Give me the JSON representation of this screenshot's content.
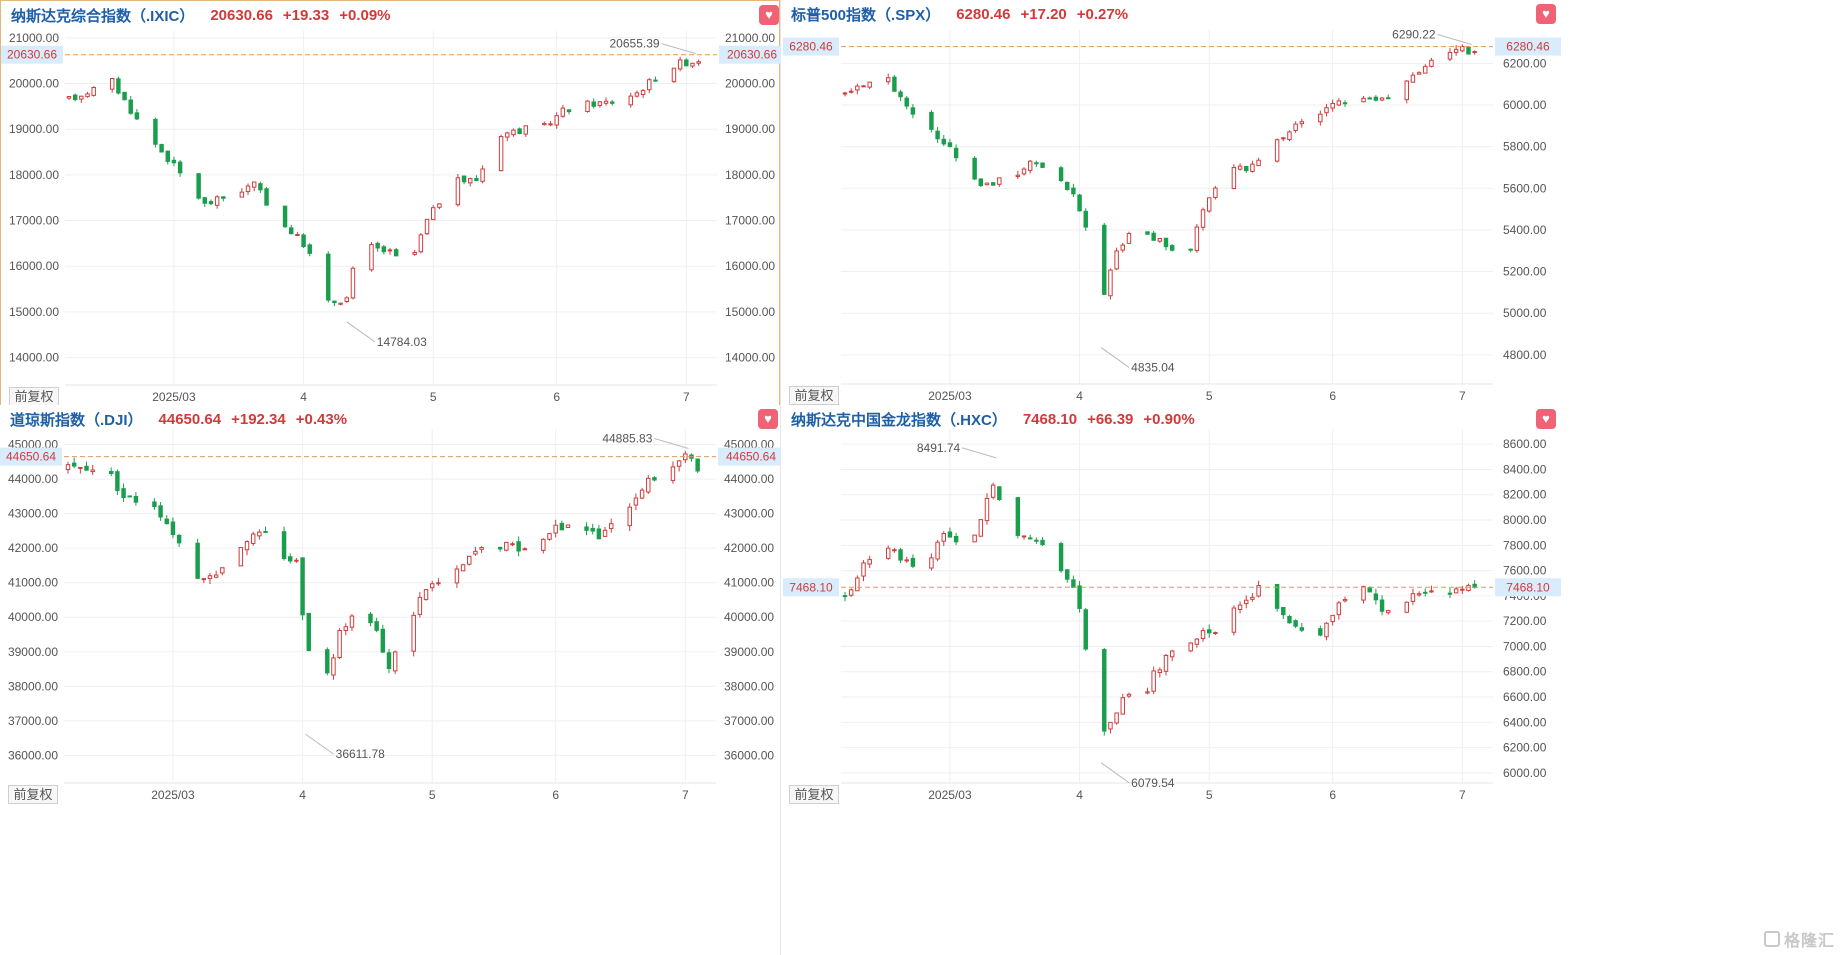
{
  "colors": {
    "up": "#cf3d3d",
    "down": "#1a9e4e",
    "reference_line": "#e09a55",
    "grid": "#efefef",
    "index_name": "#1f5fa8",
    "quote": "#d23a3a",
    "price_tag_bg": "#d9ecfb",
    "price_tag_text": "#d23a3a",
    "favorite": "#f06276"
  },
  "icons": {
    "favorite": "heart-icon",
    "watermark": "gelonghui-logo"
  },
  "adjust_label": "前复权",
  "watermark_text": "格隆汇",
  "panels": [
    {
      "id": "ixic",
      "active": true,
      "name": "纳斯达克综合指数（.IXIC）",
      "price": "20630.66",
      "change": "+19.33",
      "change_pct": "+0.09%",
      "chart_data": {
        "type": "candlestick",
        "title": "纳斯达克综合指数（.IXIC）",
        "x_labels": [
          {
            "label": "2025/03",
            "day": 17
          },
          {
            "label": "4",
            "day": 38
          },
          {
            "label": "5",
            "day": 59
          },
          {
            "label": "6",
            "day": 79
          },
          {
            "label": "7",
            "day": 100
          }
        ],
        "y_ticks": [
          "21000.00",
          "20000.00",
          "19000.00",
          "18000.00",
          "17000.00",
          "16000.00",
          "15000.00",
          "14000.00"
        ],
        "ylim": [
          13400,
          21150
        ],
        "current_price": 20630.66,
        "current_price_label": "20630.66",
        "max_point": {
          "day": 101.5,
          "value": 20655.39,
          "label": "20655.39"
        },
        "min_point": {
          "day": 45,
          "value": 14784.03,
          "label": "14784.03"
        },
        "trend": [
          [
            0,
            19650
          ],
          [
            7,
            20050
          ],
          [
            12,
            19000
          ],
          [
            17,
            18200
          ],
          [
            22,
            17350
          ],
          [
            27,
            17600
          ],
          [
            30,
            17800
          ],
          [
            34,
            17000
          ],
          [
            38,
            16500
          ],
          [
            40,
            16000
          ],
          [
            42,
            15200
          ],
          [
            45,
            15300
          ],
          [
            47,
            16500
          ],
          [
            52,
            16300
          ],
          [
            55,
            15950
          ],
          [
            58,
            17000
          ],
          [
            62,
            17850
          ],
          [
            66,
            17900
          ],
          [
            70,
            18900
          ],
          [
            74,
            19000
          ],
          [
            77,
            19050
          ],
          [
            80,
            19400
          ],
          [
            84,
            19550
          ],
          [
            88,
            19600
          ],
          [
            92,
            19800
          ],
          [
            96,
            20250
          ],
          [
            99,
            20450
          ],
          [
            101,
            20480
          ],
          [
            104,
            20630
          ]
        ],
        "volatility": 130,
        "days": 104
      }
    },
    {
      "id": "spx",
      "active": false,
      "name": "标普500指数（.SPX）",
      "price": "6280.46",
      "change": "+17.20",
      "change_pct": "+0.27%",
      "chart_data": {
        "type": "candlestick",
        "title": "标普500指数（.SPX）",
        "x_labels": [
          {
            "label": "2025/03",
            "day": 17
          },
          {
            "label": "4",
            "day": 38
          },
          {
            "label": "5",
            "day": 59
          },
          {
            "label": "6",
            "day": 79
          },
          {
            "label": "7",
            "day": 100
          }
        ],
        "y_ticks": [
          "6200.00",
          "6000.00",
          "5800.00",
          "5600.00",
          "5400.00",
          "5200.00",
          "5000.00",
          "4800.00"
        ],
        "ylim": [
          4660,
          6360
        ],
        "current_price": 6280.46,
        "current_price_label": "6280.46",
        "max_point": {
          "day": 101.5,
          "value": 6290.22,
          "label": "6290.22"
        },
        "min_point": {
          "day": 41.5,
          "value": 4835.04,
          "label": "4835.04"
        },
        "trend": [
          [
            0,
            6060
          ],
          [
            7,
            6120
          ],
          [
            12,
            5920
          ],
          [
            17,
            5800
          ],
          [
            22,
            5620
          ],
          [
            27,
            5650
          ],
          [
            30,
            5720
          ],
          [
            34,
            5650
          ],
          [
            37,
            5580
          ],
          [
            39,
            5400
          ],
          [
            41.5,
            5050
          ],
          [
            44,
            5300
          ],
          [
            47,
            5400
          ],
          [
            52,
            5330
          ],
          [
            55,
            5220
          ],
          [
            58,
            5500
          ],
          [
            62,
            5680
          ],
          [
            66,
            5700
          ],
          [
            70,
            5830
          ],
          [
            74,
            5930
          ],
          [
            77,
            5950
          ],
          [
            80,
            6020
          ],
          [
            84,
            6030
          ],
          [
            88,
            6050
          ],
          [
            92,
            6150
          ],
          [
            96,
            6230
          ],
          [
            99,
            6280
          ],
          [
            101,
            6260
          ],
          [
            104,
            6280
          ]
        ],
        "volatility": 30,
        "days": 104
      }
    },
    {
      "id": "dji",
      "active": false,
      "name": "道琼斯指数（.DJI）",
      "price": "44650.64",
      "change": "+192.34",
      "change_pct": "+0.43%",
      "chart_data": {
        "type": "candlestick",
        "title": "道琼斯指数（.DJI）",
        "x_labels": [
          {
            "label": "2025/03",
            "day": 17
          },
          {
            "label": "4",
            "day": 38
          },
          {
            "label": "5",
            "day": 59
          },
          {
            "label": "6",
            "day": 79
          },
          {
            "label": "7",
            "day": 100
          }
        ],
        "y_ticks": [
          "45000.00",
          "44000.00",
          "43000.00",
          "42000.00",
          "41000.00",
          "40000.00",
          "39000.00",
          "38000.00",
          "37000.00",
          "36000.00"
        ],
        "ylim": [
          35200,
          45450
        ],
        "current_price": 44650.64,
        "current_price_label": "44650.64",
        "max_point": {
          "day": 100.5,
          "value": 44885.83,
          "label": "44885.83"
        },
        "min_point": {
          "day": 38.5,
          "value": 36611.78,
          "label": "36611.78"
        },
        "trend": [
          [
            0,
            44300
          ],
          [
            6,
            44400
          ],
          [
            9,
            43500
          ],
          [
            14,
            43300
          ],
          [
            17,
            42500
          ],
          [
            20,
            41500
          ],
          [
            22,
            41000
          ],
          [
            25,
            41500
          ],
          [
            29,
            42300
          ],
          [
            32,
            42400
          ],
          [
            35,
            41800
          ],
          [
            37,
            41600
          ],
          [
            38.5,
            39500
          ],
          [
            41,
            37800
          ],
          [
            44,
            39500
          ],
          [
            47,
            40500
          ],
          [
            50,
            39500
          ],
          [
            52,
            38500
          ],
          [
            55,
            39800
          ],
          [
            58,
            40900
          ],
          [
            62,
            41100
          ],
          [
            66,
            41900
          ],
          [
            70,
            42100
          ],
          [
            74,
            42000
          ],
          [
            78,
            42400
          ],
          [
            82,
            42900
          ],
          [
            86,
            42300
          ],
          [
            89,
            42800
          ],
          [
            93,
            43800
          ],
          [
            97,
            44300
          ],
          [
            100,
            44700
          ],
          [
            102,
            44300
          ],
          [
            104,
            44650
          ]
        ],
        "volatility": 230,
        "days": 104
      }
    },
    {
      "id": "hxc",
      "active": false,
      "name": "纳斯达克中国金龙指数（.HXC）",
      "price": "7468.10",
      "change": "+66.39",
      "change_pct": "+0.90%",
      "chart_data": {
        "type": "candlestick",
        "title": "纳斯达克中国金龙指数（.HXC）",
        "x_labels": [
          {
            "label": "2025/03",
            "day": 17
          },
          {
            "label": "4",
            "day": 38
          },
          {
            "label": "5",
            "day": 59
          },
          {
            "label": "6",
            "day": 79
          },
          {
            "label": "7",
            "day": 100
          }
        ],
        "y_ticks": [
          "8600.00",
          "8400.00",
          "8200.00",
          "8000.00",
          "7800.00",
          "7600.00",
          "7400.00",
          "7200.00",
          "7000.00",
          "6800.00",
          "6600.00",
          "6400.00",
          "6200.00",
          "6000.00"
        ],
        "ylim": [
          5920,
          8720
        ],
        "current_price": 7468.1,
        "current_price_label": "7468.10",
        "max_point": {
          "day": 24.5,
          "value": 8491.74,
          "label": "8491.74"
        },
        "min_point": {
          "day": 41.5,
          "value": 6079.54,
          "label": "6079.54"
        },
        "trend": [
          [
            0,
            7400
          ],
          [
            3,
            7650
          ],
          [
            6,
            7800
          ],
          [
            9,
            7700
          ],
          [
            12,
            7550
          ],
          [
            14,
            7700
          ],
          [
            16,
            7900
          ],
          [
            18,
            7800
          ],
          [
            21,
            7850
          ],
          [
            24,
            8300
          ],
          [
            26,
            8000
          ],
          [
            29,
            7850
          ],
          [
            32,
            7800
          ],
          [
            35,
            7600
          ],
          [
            37,
            7500
          ],
          [
            38.5,
            7200
          ],
          [
            40,
            6600
          ],
          [
            41.5,
            6250
          ],
          [
            43,
            6400
          ],
          [
            46,
            6650
          ],
          [
            48,
            6500
          ],
          [
            50,
            6800
          ],
          [
            53,
            6950
          ],
          [
            56,
            7000
          ],
          [
            58,
            7100
          ],
          [
            61,
            7150
          ],
          [
            64,
            7350
          ],
          [
            67,
            7450
          ],
          [
            70,
            7300
          ],
          [
            73,
            7150
          ],
          [
            76,
            7050
          ],
          [
            78,
            7200
          ],
          [
            81,
            7400
          ],
          [
            84,
            7450
          ],
          [
            87,
            7300
          ],
          [
            90,
            7250
          ],
          [
            93,
            7450
          ],
          [
            96,
            7400
          ],
          [
            99,
            7450
          ],
          [
            102,
            7480
          ],
          [
            104,
            7470
          ]
        ],
        "volatility": 60,
        "days": 104
      }
    }
  ]
}
